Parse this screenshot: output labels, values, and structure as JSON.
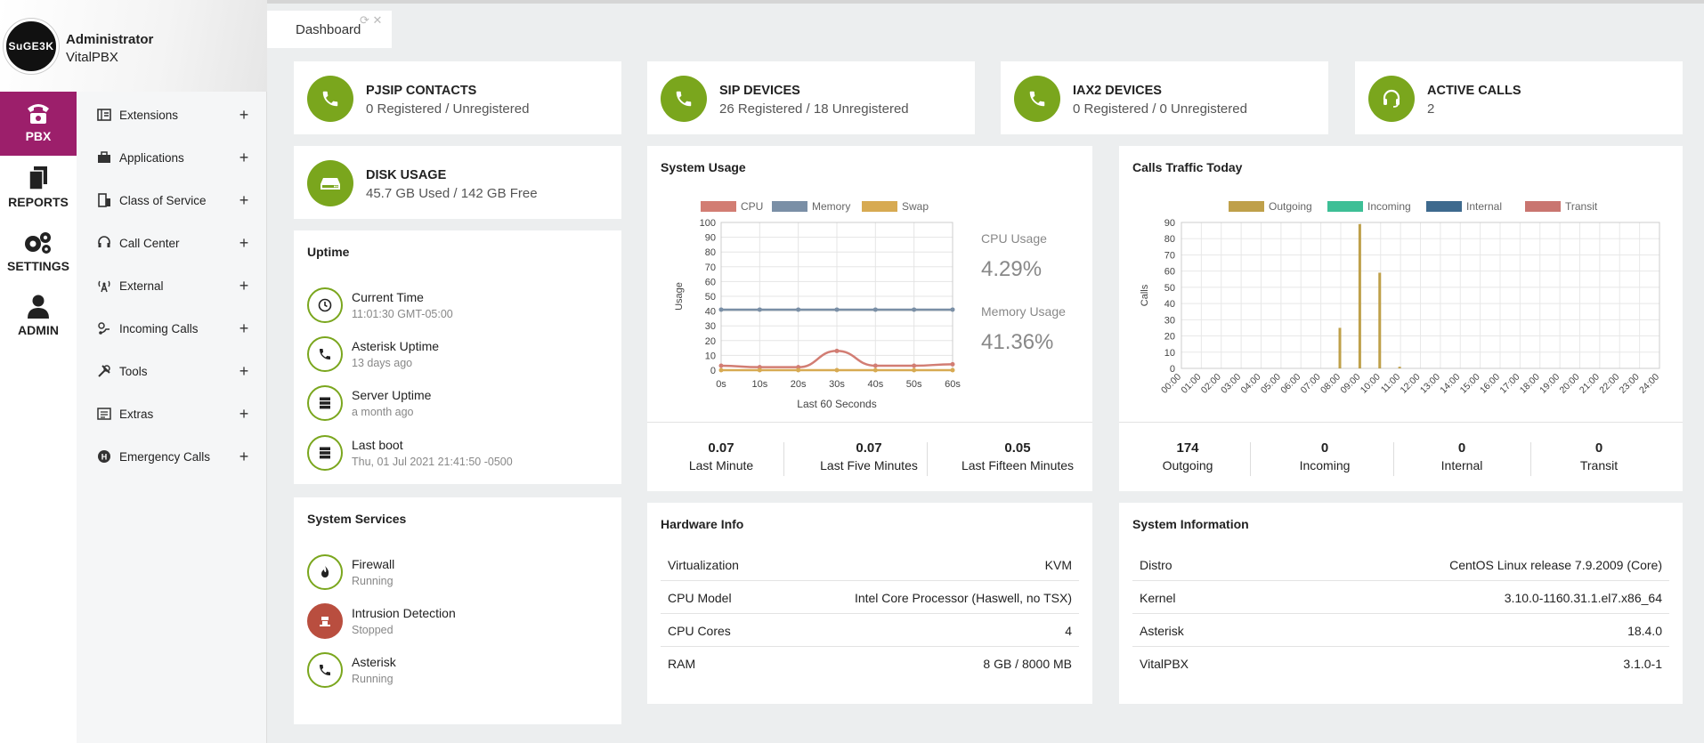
{
  "user": {
    "name": "Administrator",
    "company": "VitalPBX",
    "avatar_text": "SuGE3K"
  },
  "rail": [
    {
      "label": "PBX",
      "icon": "phone-icon",
      "active": true
    },
    {
      "label": "REPORTS",
      "icon": "documents-icon",
      "active": false
    },
    {
      "label": "SETTINGS",
      "icon": "gears-icon",
      "active": false
    },
    {
      "label": "ADMIN",
      "icon": "admin-user-icon",
      "active": false
    }
  ],
  "menu": [
    {
      "label": "Extensions",
      "icon": "extensions-icon"
    },
    {
      "label": "Applications",
      "icon": "applications-icon"
    },
    {
      "label": "Class of Service",
      "icon": "class-of-service-icon"
    },
    {
      "label": "Call Center",
      "icon": "headset-icon"
    },
    {
      "label": "External",
      "icon": "antenna-icon"
    },
    {
      "label": "Incoming Calls",
      "icon": "incoming-calls-icon"
    },
    {
      "label": "Tools",
      "icon": "tools-icon"
    },
    {
      "label": "Extras",
      "icon": "extras-icon"
    },
    {
      "label": "Emergency Calls",
      "icon": "emergency-icon"
    }
  ],
  "menu_plus": "+",
  "tab": {
    "label": "Dashboard"
  },
  "stats": {
    "pjsip": {
      "title": "PJSIP CONTACTS",
      "value": "0 Registered / Unregistered"
    },
    "sip": {
      "title": "SIP DEVICES",
      "value": "26 Registered / 18 Unregistered"
    },
    "iax2": {
      "title": "IAX2 DEVICES",
      "value": "0 Registered / 0 Unregistered"
    },
    "active": {
      "title": "ACTIVE CALLS",
      "value": "2"
    },
    "disk": {
      "title": "DISK USAGE",
      "value": "45.7 GB Used / 142 GB Free"
    }
  },
  "uptime": {
    "title": "Uptime",
    "items": [
      {
        "title": "Current Time",
        "sub": "11:01:30 GMT-05:00",
        "icon": "clock-icon"
      },
      {
        "title": "Asterisk Uptime",
        "sub": "13 days ago",
        "icon": "phone-icon"
      },
      {
        "title": "Server Uptime",
        "sub": "a month ago",
        "icon": "server-icon"
      },
      {
        "title": "Last boot",
        "sub": "Thu, 01 Jul 2021 21:41:50 -0500",
        "icon": "server-icon"
      }
    ]
  },
  "services": {
    "title": "System Services",
    "items": [
      {
        "title": "Firewall",
        "sub": "Running",
        "icon": "fire-icon",
        "status": "running"
      },
      {
        "title": "Intrusion Detection",
        "sub": "Stopped",
        "icon": "intrusion-icon",
        "status": "stopped"
      },
      {
        "title": "Asterisk",
        "sub": "Running",
        "icon": "phone-icon",
        "status": "running"
      }
    ]
  },
  "system_usage": {
    "title": "System Usage",
    "cpu_label": "CPU Usage",
    "cpu_value": "4.29%",
    "mem_label": "Memory Usage",
    "mem_value": "41.36%",
    "load": [
      {
        "value": "0.07",
        "label": "Last Minute"
      },
      {
        "value": "0.07",
        "label": "Last Five Minutes"
      },
      {
        "value": "0.05",
        "label": "Last Fifteen Minutes"
      }
    ]
  },
  "calls_traffic": {
    "title": "Calls Traffic Today",
    "totals": [
      {
        "value": "174",
        "label": "Outgoing"
      },
      {
        "value": "0",
        "label": "Incoming"
      },
      {
        "value": "0",
        "label": "Internal"
      },
      {
        "value": "0",
        "label": "Transit"
      }
    ]
  },
  "hardware": {
    "title": "Hardware Info",
    "rows": [
      {
        "key": "Virtualization",
        "value": "KVM"
      },
      {
        "key": "CPU Model",
        "value": "Intel Core Processor (Haswell, no TSX)"
      },
      {
        "key": "CPU Cores",
        "value": "4"
      },
      {
        "key": "RAM",
        "value": "8 GB / 8000 MB"
      }
    ]
  },
  "sysinfo": {
    "title": "System Information",
    "rows": [
      {
        "key": "Distro",
        "value": "CentOS Linux release 7.9.2009 (Core)"
      },
      {
        "key": "Kernel",
        "value": "3.10.0-1160.31.1.el7.x86_64"
      },
      {
        "key": "Asterisk",
        "value": "18.4.0"
      },
      {
        "key": "VitalPBX",
        "value": "3.1.0-1"
      }
    ]
  },
  "colors": {
    "accent": "#9c1f6b",
    "green": "#7aa61d",
    "stopped": "#b94e3f"
  },
  "chart_data": [
    {
      "type": "line",
      "ylabel": "Usage",
      "xlabel": "Last 60 Seconds",
      "x": [
        "0s",
        "10s",
        "20s",
        "30s",
        "40s",
        "50s",
        "60s"
      ],
      "ylim": [
        0,
        100
      ],
      "yticks": [
        0,
        10,
        20,
        30,
        40,
        50,
        60,
        70,
        80,
        90,
        100
      ],
      "grid": true,
      "legend": "top",
      "series": [
        {
          "name": "CPU",
          "color": "#d27d73",
          "values": [
            3,
            2,
            2,
            13,
            3,
            3,
            4
          ]
        },
        {
          "name": "Memory",
          "color": "#7a8fa6",
          "values": [
            41,
            41,
            41,
            41,
            41,
            41,
            41
          ]
        },
        {
          "name": "Swap",
          "color": "#d7aa52",
          "values": [
            0,
            0,
            0,
            0,
            0,
            0,
            0
          ]
        }
      ]
    },
    {
      "type": "bar",
      "ylabel": "Calls",
      "ylim": [
        0,
        90
      ],
      "yticks": [
        0,
        10,
        20,
        30,
        40,
        50,
        60,
        70,
        80,
        90
      ],
      "grid": true,
      "legend": "top",
      "categories": [
        "00:00",
        "01:00",
        "02:00",
        "03:00",
        "04:00",
        "05:00",
        "06:00",
        "07:00",
        "08:00",
        "09:00",
        "10:00",
        "11:00",
        "12:00",
        "13:00",
        "14:00",
        "15:00",
        "16:00",
        "17:00",
        "18:00",
        "19:00",
        "20:00",
        "21:00",
        "22:00",
        "23:00",
        "24:00"
      ],
      "series": [
        {
          "name": "Outgoing",
          "color": "#bfa04a",
          "values": [
            0,
            0,
            0,
            0,
            0,
            0,
            0,
            0,
            25,
            89,
            59,
            1,
            0,
            0,
            0,
            0,
            0,
            0,
            0,
            0,
            0,
            0,
            0,
            0,
            0
          ]
        },
        {
          "name": "Incoming",
          "color": "#3dbf96",
          "values": [
            0,
            0,
            0,
            0,
            0,
            0,
            0,
            0,
            0,
            0,
            0,
            0,
            0,
            0,
            0,
            0,
            0,
            0,
            0,
            0,
            0,
            0,
            0,
            0,
            0
          ]
        },
        {
          "name": "Internal",
          "color": "#3e6a8e",
          "values": [
            0,
            0,
            0,
            0,
            0,
            0,
            0,
            0,
            0,
            0,
            0,
            0,
            0,
            0,
            0,
            0,
            0,
            0,
            0,
            0,
            0,
            0,
            0,
            0,
            0
          ]
        },
        {
          "name": "Transit",
          "color": "#c97570",
          "values": [
            0,
            0,
            0,
            0,
            0,
            0,
            0,
            0,
            0,
            0,
            0,
            0,
            0,
            0,
            0,
            0,
            0,
            0,
            0,
            0,
            0,
            0,
            0,
            0,
            0
          ]
        }
      ]
    }
  ]
}
